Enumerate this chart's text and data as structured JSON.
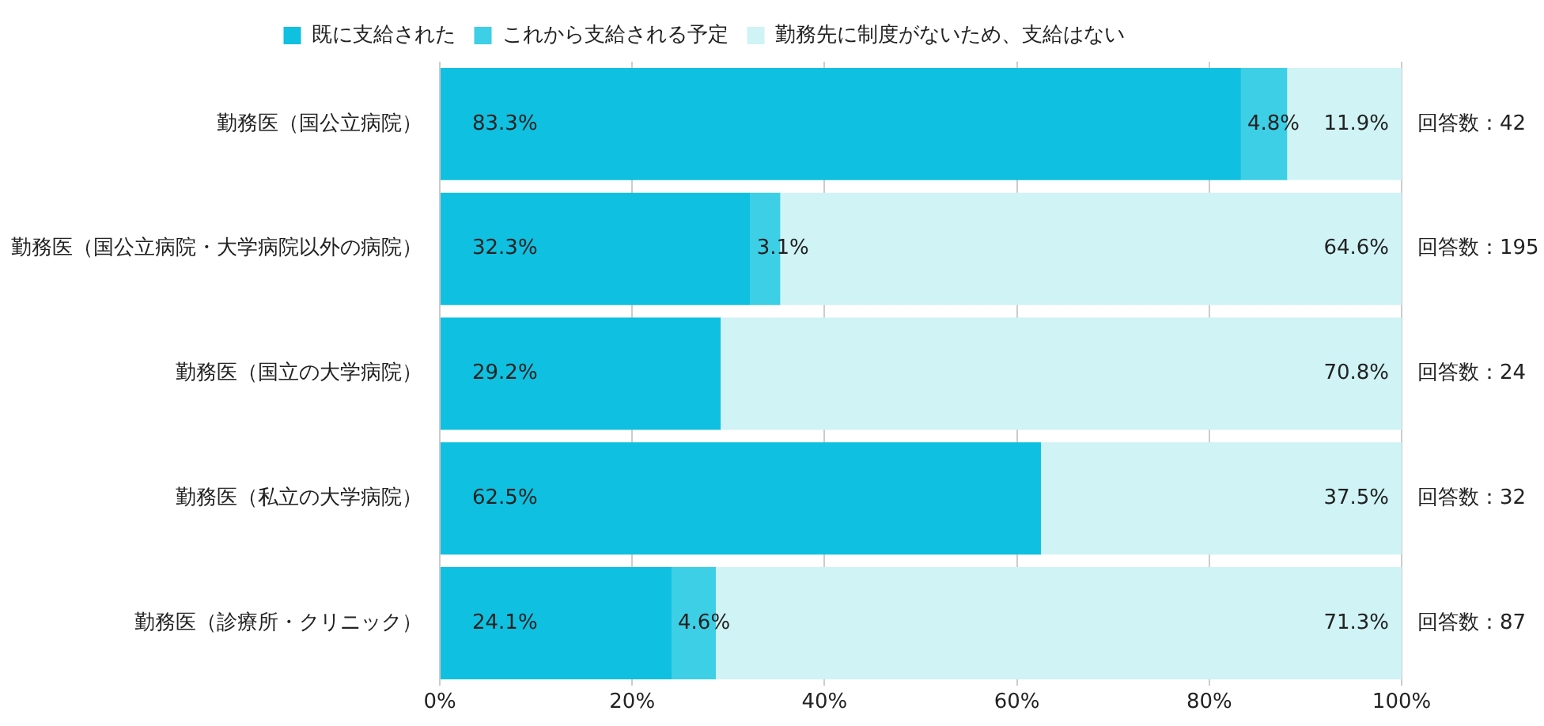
{
  "chart_data": {
    "type": "bar",
    "orientation": "horizontal",
    "stacked": true,
    "categories": [
      "勤務医（国公立病院）",
      "勤務医（国公立病院・大学病院以外の病院）",
      "勤務医（国立の大学病院）",
      "勤務医（私立の大学病院）",
      "勤務医（診療所・クリニック）"
    ],
    "series": [
      {
        "name": "既に支給された",
        "color": "#0fc0e0",
        "values": [
          83.3,
          32.3,
          29.2,
          62.5,
          24.1
        ],
        "value_labels": [
          "83.3%",
          "32.3%",
          "29.2%",
          "62.5%",
          "24.1%"
        ]
      },
      {
        "name": "これから支給される予定",
        "color": "#3ccfe6",
        "values": [
          4.8,
          3.1,
          0,
          0,
          4.6
        ],
        "value_labels": [
          "4.8%",
          "3.1%",
          null,
          null,
          "4.6%"
        ]
      },
      {
        "name": "勤務先に制度がないため、支給はない",
        "color": "#d0f3f5",
        "values": [
          11.9,
          64.6,
          70.8,
          37.5,
          71.3
        ],
        "value_labels": [
          "11.9%",
          "64.6%",
          "70.8%",
          "37.5%",
          "71.3%"
        ]
      }
    ],
    "xlim": [
      0,
      100
    ],
    "xticks": [
      {
        "value": 0,
        "label": "0%"
      },
      {
        "value": 20,
        "label": "20%"
      },
      {
        "value": 40,
        "label": "40%"
      },
      {
        "value": 60,
        "label": "60%"
      },
      {
        "value": 80,
        "label": "80%"
      },
      {
        "value": 100,
        "label": "100%"
      }
    ],
    "grid": "x",
    "legend": "top",
    "annotations": [
      "回答数：42",
      "回答数：195",
      "回答数：24",
      "回答数：32",
      "回答数：87"
    ]
  }
}
